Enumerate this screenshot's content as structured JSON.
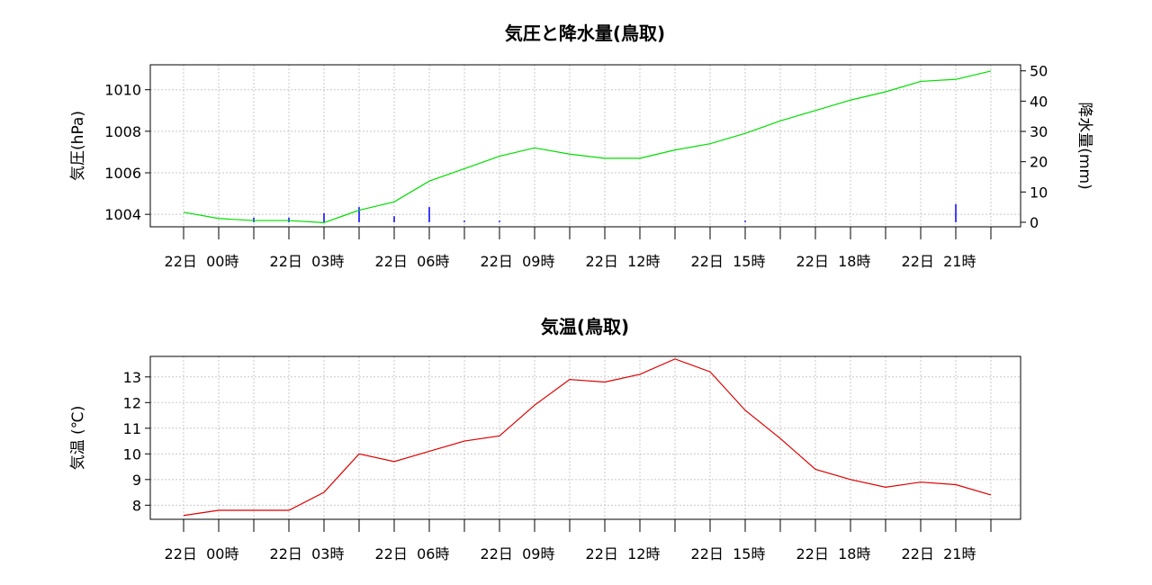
{
  "chart_data": [
    {
      "type": "line",
      "title": "気圧と降水量(鳥取)",
      "xlabel": "",
      "ylabel": "気圧(hPa)",
      "ylabel_right": "降水量(mm)",
      "ylim": [
        1003.4,
        1011.2
      ],
      "ylim_right": [
        -1.5,
        52
      ],
      "yticks": [
        1004,
        1006,
        1008,
        1010
      ],
      "yticks_right": [
        0,
        10,
        20,
        30,
        40,
        50
      ],
      "x_tick_labels": [
        "22日  00時",
        "22日  03時",
        "22日  06時",
        "22日  09時",
        "22日  12時",
        "22日  15時",
        "22日  18時",
        "22日  21時"
      ],
      "grid": true,
      "pressure_color": "#00dd00",
      "precip_color": "#0000ff",
      "series": [
        {
          "axis": "left",
          "values": [
            1004.1,
            1003.8,
            1003.7,
            1003.7,
            1003.6,
            1004.2,
            1004.6,
            1005.6,
            1006.2,
            1006.8,
            1007.2,
            1006.9,
            1006.7,
            1006.7,
            1007.1,
            1007.4,
            1007.9,
            1008.5,
            1009.0,
            1009.5,
            1009.9,
            1010.4,
            1010.5,
            1010.9
          ]
        },
        {
          "axis": "right",
          "style": "bar",
          "values": [
            0,
            0,
            1.5,
            1.5,
            3,
            5,
            2,
            5,
            0.5,
            0.5,
            0,
            0,
            0,
            0,
            0,
            0,
            0.5,
            0,
            0,
            0,
            0,
            0,
            6,
            0
          ]
        }
      ]
    },
    {
      "type": "line",
      "title": "気温(鳥取)",
      "xlabel": "",
      "ylabel": "気温 (℃)",
      "ylim": [
        7.45,
        13.8
      ],
      "yticks": [
        8,
        9,
        10,
        11,
        12,
        13
      ],
      "x_tick_labels": [
        "22日  00時",
        "22日  03時",
        "22日  06時",
        "22日  09時",
        "22日  12時",
        "22日  15時",
        "22日  18時",
        "22日  21時"
      ],
      "grid": true,
      "line_color": "#dd0000",
      "series": [
        {
          "values": [
            7.6,
            7.8,
            7.8,
            7.8,
            8.5,
            10.0,
            9.7,
            10.1,
            10.5,
            10.7,
            11.9,
            12.9,
            12.8,
            13.1,
            13.7,
            13.2,
            11.7,
            10.6,
            9.4,
            9.0,
            8.7,
            8.9,
            8.8,
            8.4
          ]
        }
      ]
    }
  ]
}
